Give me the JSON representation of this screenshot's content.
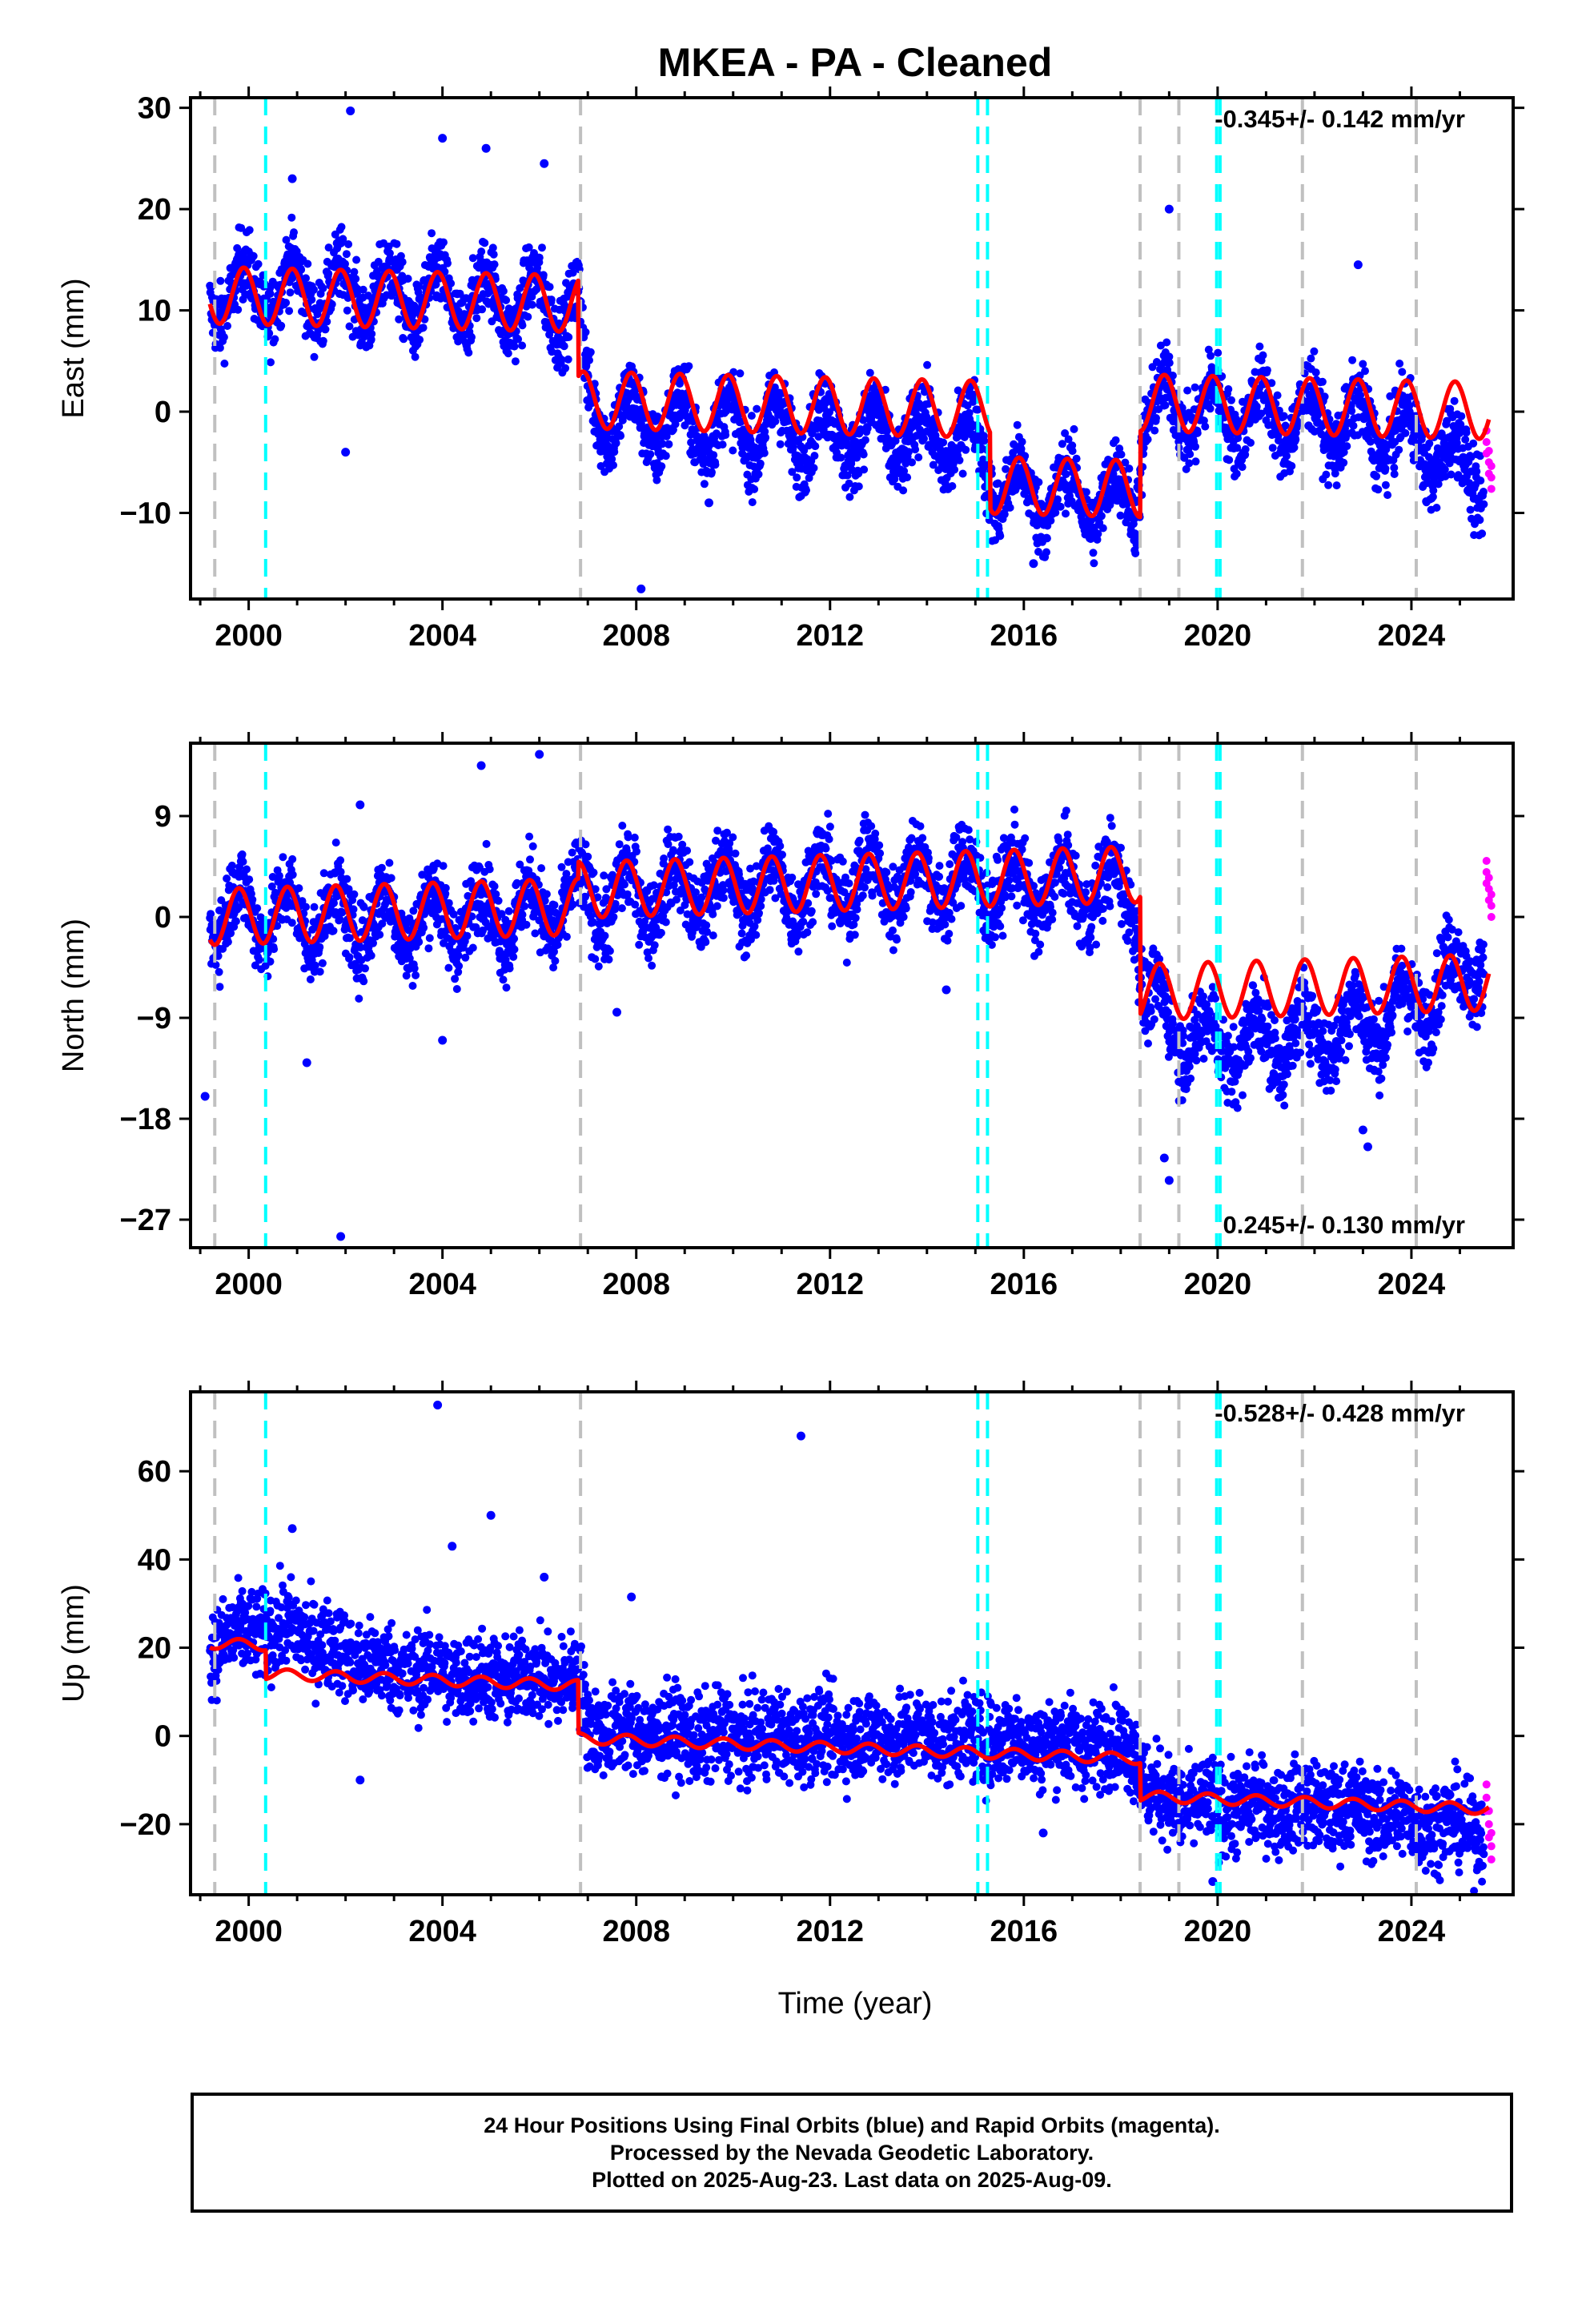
{
  "figure": {
    "title": "MKEA  - PA - Cleaned",
    "xlabel": "Time (year)"
  },
  "colors": {
    "final_orbits": "#0000ff",
    "rapid_orbits": "#ff00ff",
    "model": "#ff0000",
    "equipment_change": "#c0c0c0",
    "event": "#00ffff"
  },
  "footer": {
    "line1": "24 Hour Positions Using Final Orbits (blue) and Rapid Orbits (magenta).",
    "line2": "Processed by the Nevada Geodetic Laboratory.",
    "line3": "Plotted on 2025-Aug-23. Last data on 2025-Aug-09."
  },
  "chart_data": [
    {
      "type": "scatter",
      "component": "east",
      "ylabel": "East (mm)",
      "rate_label": "-0.345+/- 0.142 mm/yr",
      "rate_position": "top-right",
      "xlim": [
        1998.8,
        2026.1
      ],
      "ylim": [
        -18.5,
        31
      ],
      "xticks": [
        2000,
        2004,
        2008,
        2012,
        2016,
        2020,
        2024
      ],
      "yticks": [
        -10,
        0,
        10,
        20,
        30
      ],
      "gray_dashed_x": [
        1999.3,
        2006.85,
        2018.4,
        2019.2,
        2021.75,
        2024.1
      ],
      "cyan_dashed_x": [
        2000.35,
        2015.05,
        2015.25,
        2019.98,
        2020.05
      ],
      "series": [
        {
          "role": "final_orbits",
          "x": [
            1999.2,
            2000.0,
            2001.0,
            2002.0,
            2003.0,
            2004.0,
            2005.0,
            2006.0,
            2006.8,
            2007.0,
            2008.0,
            2009.0,
            2010.0,
            2011.0,
            2012.0,
            2013.0,
            2014.0,
            2015.0,
            2015.5,
            2016.0,
            2017.0,
            2018.3,
            2018.5,
            2019.0,
            2020.0,
            2021.0,
            2022.0,
            2023.0,
            2024.0,
            2025.5
          ],
          "y": [
            11.5,
            12.0,
            12.0,
            11.7,
            11.5,
            11.2,
            11.0,
            10.7,
            10.5,
            0.5,
            -1.0,
            -1.2,
            -1.5,
            -1.8,
            -2.0,
            -2.3,
            -2.6,
            -2.9,
            -7.8,
            -8.0,
            -8.4,
            -8.8,
            0.5,
            0.3,
            0.0,
            -0.3,
            -0.8,
            -1.5,
            -2.5,
            -6.5
          ]
        },
        {
          "role": "rapid_orbits",
          "x": [
            2025.55,
            2025.6,
            2025.65
          ],
          "y": [
            -3.0,
            -5.0,
            -6.5
          ]
        }
      ],
      "outliers": {
        "x": [
          2000.9,
          2002.0,
          2002.1,
          2004.0,
          2004.9,
          2006.1,
          2008.1,
          2009.5,
          2019.0,
          2022.9,
          2016.2
        ],
        "y": [
          23,
          -4,
          29.7,
          27,
          26,
          24.5,
          -17.5,
          -9,
          20,
          14.5,
          -15
        ]
      },
      "model": {
        "offset_x": [
          2006.8,
          2015.3,
          2018.4
        ],
        "offset_y": [
          -9.5,
          -7.5,
          8.5
        ],
        "x_start": 1999.2,
        "x_end": 2025.6,
        "level_start": 11.5,
        "rate_mm_yr": -0.11,
        "annual_amplitude": 2.8,
        "x_phase": 2000.65
      }
    },
    {
      "type": "scatter",
      "component": "north",
      "ylabel": "North (mm)",
      "rate_label": "0.245+/- 0.130 mm/yr",
      "rate_position": "bottom-right",
      "xlim": [
        1998.8,
        2026.1
      ],
      "ylim": [
        -29.5,
        15.5
      ],
      "xticks": [
        2000,
        2004,
        2008,
        2012,
        2016,
        2020,
        2024
      ],
      "yticks": [
        -27,
        -18,
        -9,
        0,
        9
      ],
      "gray_dashed_x": [
        1999.3,
        2006.85,
        2018.4,
        2019.2,
        2021.75,
        2024.1
      ],
      "cyan_dashed_x": [
        2000.35,
        2015.05,
        2015.25,
        2019.98,
        2020.05
      ],
      "series": [
        {
          "role": "final_orbits",
          "x": [
            1999.2,
            2000.0,
            2001.0,
            2002.0,
            2003.0,
            2004.0,
            2005.0,
            2006.0,
            2007.0,
            2008.0,
            2009.0,
            2010.0,
            2011.0,
            2012.0,
            2013.0,
            2014.0,
            2015.0,
            2016.0,
            2017.0,
            2018.3,
            2018.5,
            2019.0,
            2020.0,
            2021.0,
            2022.0,
            2023.0,
            2024.0,
            2025.5
          ],
          "y": [
            0.5,
            0.5,
            0.0,
            -0.3,
            -0.2,
            0.0,
            0.3,
            0.5,
            1.5,
            2.0,
            2.3,
            2.5,
            2.8,
            3.0,
            3.2,
            3.3,
            3.0,
            2.5,
            2.5,
            2.3,
            -7.5,
            -9.5,
            -11.5,
            -11.0,
            -10.5,
            -9.5,
            -8.0,
            -3.5
          ]
        },
        {
          "role": "rapid_orbits",
          "x": [
            2025.55,
            2025.6,
            2025.65
          ],
          "y": [
            4.0,
            2.5,
            1.0
          ]
        }
      ],
      "outliers": {
        "x": [
          1999.1,
          2001.2,
          2001.9,
          2002.3,
          2004.0,
          2004.8,
          2006.0,
          2007.6,
          2014.4,
          2018.9,
          2019.0,
          2023.0,
          2023.1
        ],
        "y": [
          -16,
          -13,
          -28.5,
          10,
          -11,
          13.5,
          14.5,
          -8.5,
          -6.5,
          -21.5,
          -23.5,
          -19,
          -20.5
        ]
      },
      "model": {
        "offset_x": [
          2006.8,
          2018.4
        ],
        "offset_y": [
          1.5,
          -10.5
        ],
        "x_start": 1999.2,
        "x_end": 2025.6,
        "level_start": 0.0,
        "rate_mm_yr": 0.12,
        "annual_amplitude": 2.5,
        "x_phase": 1999.55
      }
    },
    {
      "type": "scatter",
      "component": "up",
      "ylabel": "Up (mm)",
      "rate_label": "-0.528+/- 0.428 mm/yr",
      "rate_position": "top-right",
      "xlim": [
        1998.8,
        2026.1
      ],
      "ylim": [
        -36,
        78
      ],
      "xticks": [
        2000,
        2004,
        2008,
        2012,
        2016,
        2020,
        2024
      ],
      "yticks": [
        -20,
        0,
        20,
        40,
        60
      ],
      "gray_dashed_x": [
        1999.3,
        2006.85,
        2018.4,
        2019.2,
        2021.75,
        2024.1
      ],
      "cyan_dashed_x": [
        2000.35,
        2015.05,
        2015.25,
        2019.98,
        2020.05
      ],
      "series": [
        {
          "role": "final_orbits",
          "x": [
            1999.2,
            2000.0,
            2000.4,
            2001.0,
            2002.0,
            2003.0,
            2004.0,
            2005.0,
            2006.0,
            2006.8,
            2007.0,
            2008.0,
            2009.0,
            2010.0,
            2011.0,
            2012.0,
            2013.0,
            2014.0,
            2015.0,
            2016.0,
            2017.0,
            2018.3,
            2018.5,
            2019.0,
            2020.0,
            2021.0,
            2022.0,
            2023.0,
            2024.0,
            2025.5
          ],
          "y": [
            21,
            23,
            24,
            24,
            18,
            15,
            14,
            13,
            13,
            13,
            2,
            1,
            0,
            0,
            0,
            0,
            0,
            0,
            -1,
            -1,
            -2,
            -2,
            -12,
            -15,
            -16,
            -16,
            -16,
            -17,
            -19,
            -21
          ]
        },
        {
          "role": "rapid_orbits",
          "x": [
            2025.55,
            2025.6,
            2025.65
          ],
          "y": [
            -14,
            -20,
            -25
          ]
        }
      ],
      "outliers": {
        "x": [
          2000.9,
          2002.3,
          2003.9,
          2004.2,
          2005.0,
          2006.1,
          2007.9,
          2011.4,
          2016.4,
          2019.9
        ],
        "y": [
          47,
          -10,
          75,
          43,
          50,
          36,
          31.5,
          68,
          -22,
          -33
        ]
      },
      "model": {
        "offset_x": [
          2000.35,
          2006.8,
          2018.4
        ],
        "offset_y": [
          -6.5,
          -12.0,
          -8.5
        ],
        "x_start": 1999.2,
        "x_end": 2025.6,
        "level_start": 21.0,
        "rate_mm_yr": -0.4,
        "annual_amplitude": 1.2,
        "x_phase": 1999.55
      }
    }
  ]
}
